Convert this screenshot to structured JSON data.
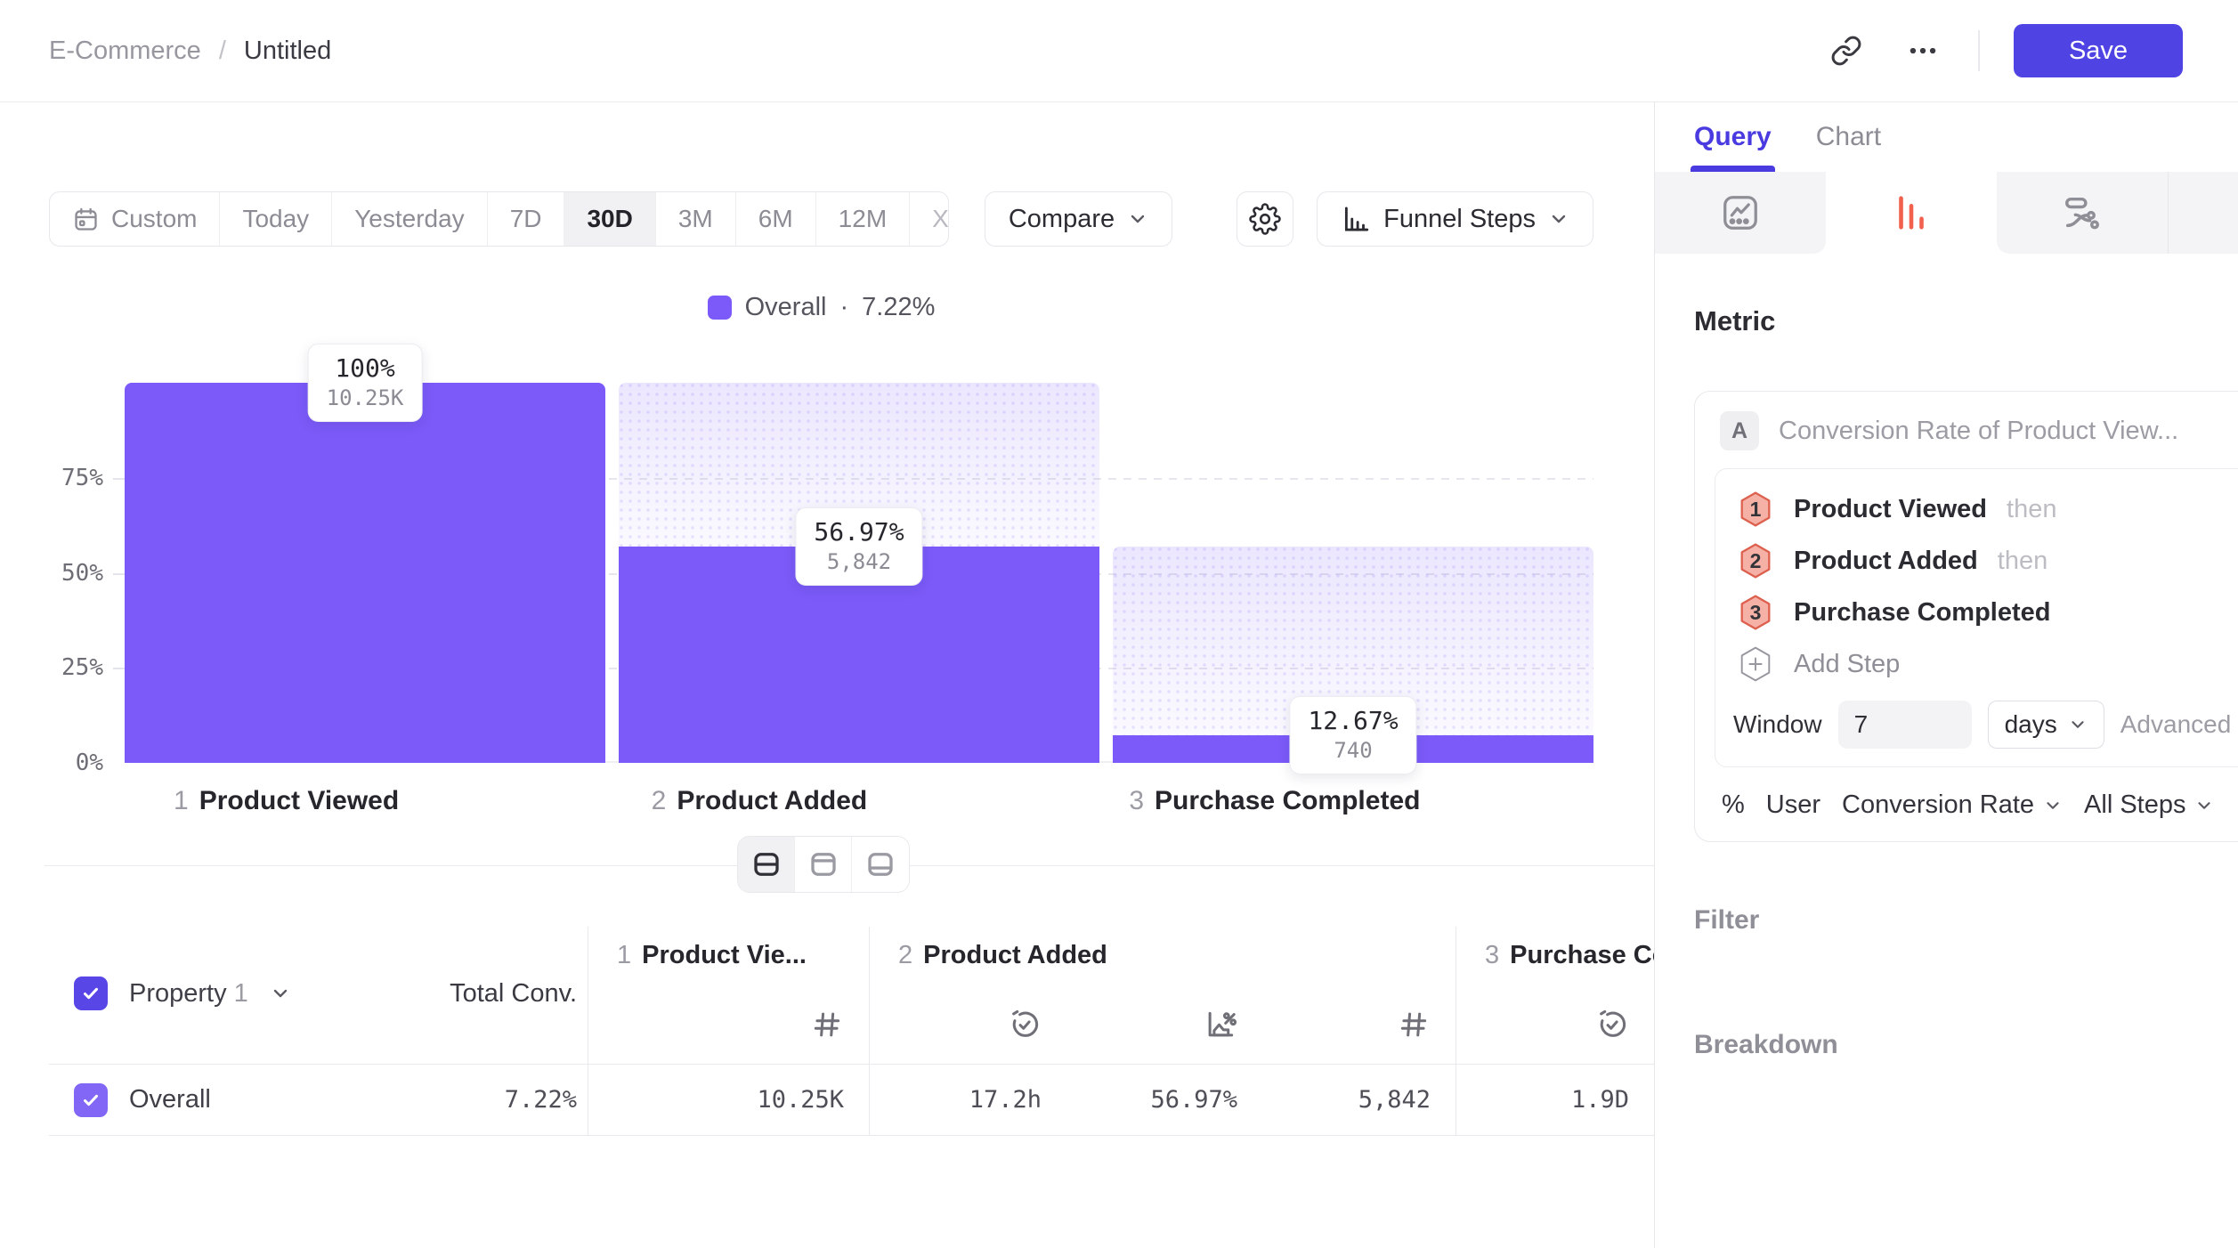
{
  "colors": {
    "bar_purple": "#7B5AF9",
    "save_indigo": "#4F43E3",
    "active_tab_coral": "#F2614D",
    "step_badge_fill": "#F5B1A6",
    "step_badge_border": "#DD5F4D"
  },
  "topbar": {
    "breadcrumb_parent": "E-Commerce",
    "breadcrumb_separator": "/",
    "breadcrumb_current": "Untitled",
    "save_label": "Save"
  },
  "toolbar": {
    "date_ranges": [
      "Custom",
      "Today",
      "Yesterday",
      "7D",
      "30D",
      "3M",
      "6M",
      "12M",
      "XTD"
    ],
    "selected_range": "30D",
    "compare_label": "Compare",
    "chart_type_label": "Funnel Steps"
  },
  "chart_data": {
    "type": "funnel",
    "legend": {
      "name": "Overall",
      "separator": "·",
      "value": "7.22%"
    },
    "y_ticks": [
      "75%",
      "50%",
      "25%",
      "0%"
    ],
    "ylim": [
      0,
      100
    ],
    "grid": "dashed-horizontal-25-50-75",
    "legend_position": "top-center",
    "steps": [
      {
        "index": "1",
        "name": "Product Viewed",
        "pct_label": "100%",
        "count_label": "10.25K",
        "count": 10250,
        "solid_pct": 100,
        "ghost_top_pct": 100
      },
      {
        "index": "2",
        "name": "Product Added",
        "pct_label": "56.97%",
        "count_label": "5,842",
        "count": 5842,
        "solid_pct": 56.97,
        "ghost_top_pct": 100
      },
      {
        "index": "3",
        "name": "Purchase Completed",
        "pct_label": "12.67%",
        "count_label": "740",
        "count": 740,
        "solid_pct": 7.22,
        "ghost_top_pct": 56.97
      }
    ]
  },
  "view_toggle": {
    "options": [
      "split-view",
      "table-view",
      "chart-view"
    ],
    "selected": "split-view"
  },
  "table": {
    "property_label": "Property",
    "property_index": "1",
    "total_conv_header": "Total Conv.",
    "groups": [
      {
        "index": "1",
        "label": "Product Vie..."
      },
      {
        "index": "2",
        "label": "Product Added"
      },
      {
        "index": "3",
        "label": "Purchase Completed"
      }
    ],
    "row": {
      "label": "Overall",
      "total_conv": "7.22%",
      "step1_count": "10.25K",
      "step2_avg_time": "17.2h",
      "step2_conv": "56.97%",
      "step2_count": "5,842",
      "step3_avg_time": "1.9D"
    }
  },
  "panel": {
    "tabs": {
      "query": "Query",
      "chart": "Chart",
      "active": "Query"
    },
    "metric": {
      "heading": "Metric",
      "series_badge": "A",
      "series_title": "Conversion Rate of Product View...",
      "steps": [
        {
          "num": "1",
          "name": "Product Viewed",
          "suffix": "then"
        },
        {
          "num": "2",
          "name": "Product Added",
          "suffix": "then"
        },
        {
          "num": "3",
          "name": "Purchase Completed",
          "suffix": ""
        }
      ],
      "add_step_label": "Add Step",
      "window_label": "Window",
      "window_value": "7",
      "window_unit": "days",
      "advanced_label": "Advanced",
      "measured_prefix": "%",
      "measured_entity": "User",
      "measured_as": "Conversion Rate",
      "measured_scope": "All Steps"
    },
    "filter_label": "Filter",
    "breakdown_label": "Breakdown"
  }
}
